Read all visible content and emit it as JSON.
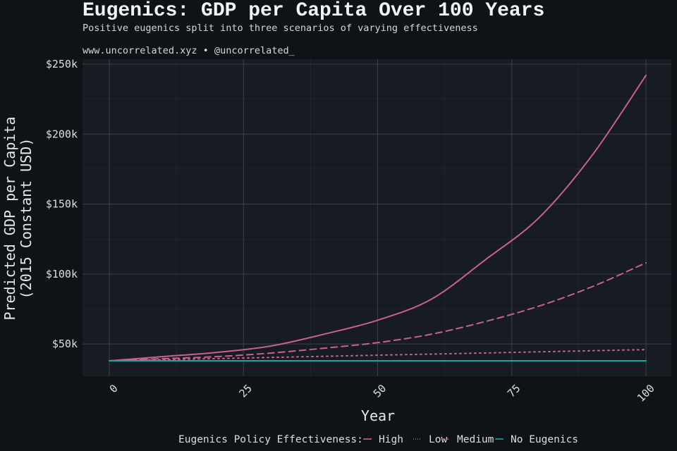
{
  "header": {
    "title": "Eugenics: GDP per Capita Over 100 Years",
    "subtitle": "Positive eugenics split into three scenarios of varying effectiveness",
    "credit": "www.uncorrelated.xyz • @uncorrelated_"
  },
  "colors": {
    "background": "#0f1217",
    "panel": "#171b22",
    "grid": "#3a4048",
    "eugenics": "#c8628a",
    "no_eugenics": "#1aa3a3"
  },
  "chart_data": {
    "type": "line",
    "title": "Eugenics: GDP per Capita Over 100 Years",
    "subtitle": "Positive eugenics split into three scenarios of varying effectiveness",
    "xlabel": "Year",
    "ylabel_line1": "Predicted GDP per Capita",
    "ylabel_line2": "(2015 Constant USD)",
    "xlim": [
      0,
      100
    ],
    "ylim": [
      27000,
      250000
    ],
    "x_ticks": [
      0,
      25,
      50,
      75,
      100
    ],
    "x_tick_labels": [
      "0",
      "25",
      "50",
      "75",
      "100"
    ],
    "y_ticks": [
      50000,
      100000,
      150000,
      200000,
      250000
    ],
    "y_tick_labels": [
      "$50k",
      "$100k",
      "$150k",
      "$200k",
      "$250k"
    ],
    "grid": true,
    "legend_title": "Eugenics Policy Effectiveness:",
    "legend_position": "bottom",
    "x": [
      0,
      10,
      20,
      30,
      40,
      50,
      60,
      70,
      80,
      90,
      100
    ],
    "series": [
      {
        "name": "High",
        "style": "solid",
        "color": "#c8628a",
        "values": [
          38000,
          41000,
          44000,
          48500,
          57000,
          67000,
          82000,
          110000,
          140000,
          185000,
          242000
        ]
      },
      {
        "name": "Low",
        "style": "dotted",
        "color": "#c8628a",
        "values": [
          38000,
          38800,
          39600,
          40400,
          41200,
          42000,
          42800,
          43600,
          44400,
          45200,
          46000
        ]
      },
      {
        "name": "Medium",
        "style": "dashed",
        "color": "#c8628a",
        "values": [
          38000,
          39500,
          41000,
          43500,
          47000,
          51000,
          57000,
          66000,
          77000,
          91000,
          108000
        ]
      },
      {
        "name": "No Eugenics",
        "style": "solid",
        "color": "#1aa3a3",
        "values": [
          38000,
          38000,
          38000,
          38000,
          38000,
          38000,
          38000,
          38000,
          38000,
          38000,
          38000
        ]
      }
    ]
  }
}
